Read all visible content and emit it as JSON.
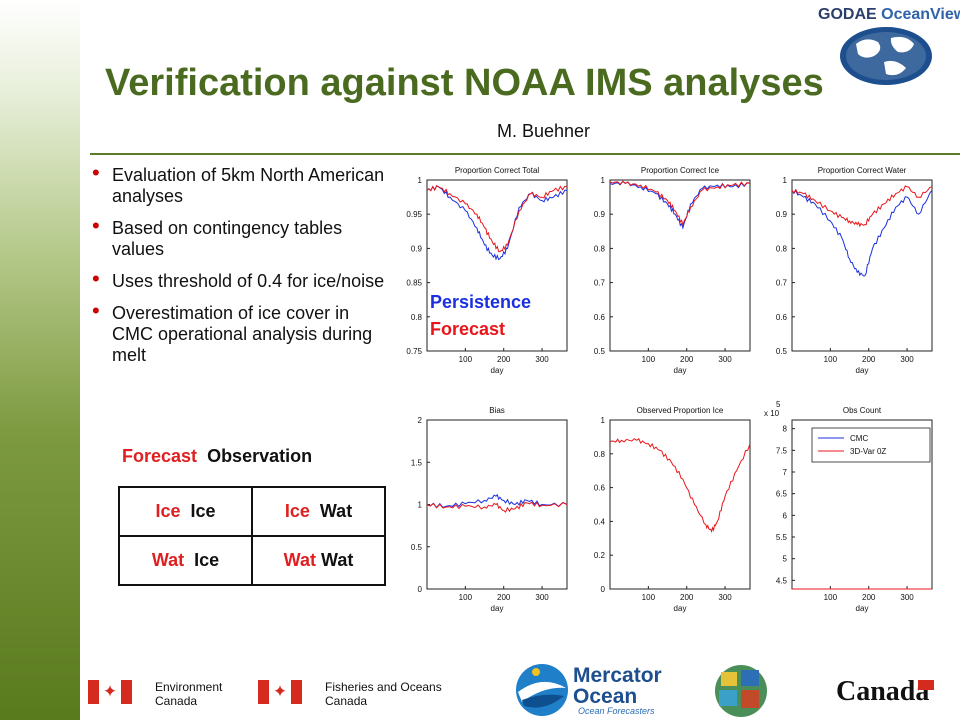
{
  "header": {
    "title": "Verification against NOAA IMS analyses",
    "author": "M. Buehner",
    "brand_strong": "GODAE",
    "brand_light": "OceanView"
  },
  "bullets": [
    {
      "text": "Evaluation of 5km North American analyses"
    },
    {
      "text": "Based on contingency tables values"
    },
    {
      "text": "Uses threshold of 0.4 for ice/noise"
    },
    {
      "text": "Overestimation of ice cover in CMC operational analysis during melt"
    }
  ],
  "contingency": {
    "header_forecast": "Forecast",
    "header_observation": "Observation",
    "rows": [
      [
        {
          "a": "Ice",
          "b": "Ice"
        },
        {
          "a": "Ice",
          "b": "Wat"
        }
      ],
      [
        {
          "a": "Wat",
          "b": "Ice"
        },
        {
          "a": "Wat",
          "b": "Wat"
        }
      ]
    ]
  },
  "plot_legend": {
    "persistence": "Persistence",
    "forecast": "Forecast"
  },
  "colors": {
    "title_green": "#4a6b1f",
    "blue_series": "#1a2fe0",
    "red_series": "#e8161b",
    "bullet_red": "#cc0000"
  },
  "chart_data": [
    {
      "type": "line",
      "title": "Proportion Correct Total",
      "xlabel": "day",
      "xlim": [
        0,
        365
      ],
      "ylim": [
        0.75,
        1
      ],
      "xticks": [
        "100",
        "200",
        "300"
      ],
      "yticks": [
        "0.75",
        "0.8",
        "0.85",
        "0.9",
        "0.95",
        "1"
      ],
      "series": [
        {
          "color": "blue",
          "x": [
            0,
            30,
            60,
            100,
            130,
            150,
            170,
            190,
            210,
            240,
            270,
            300,
            330,
            365
          ],
          "y": [
            0.985,
            0.99,
            0.975,
            0.955,
            0.93,
            0.905,
            0.89,
            0.885,
            0.9,
            0.96,
            0.98,
            0.97,
            0.975,
            0.985
          ]
        },
        {
          "color": "red",
          "x": [
            0,
            30,
            60,
            100,
            130,
            150,
            170,
            190,
            210,
            240,
            270,
            300,
            330,
            365
          ],
          "y": [
            0.985,
            0.99,
            0.98,
            0.965,
            0.95,
            0.93,
            0.91,
            0.895,
            0.905,
            0.955,
            0.98,
            0.975,
            0.985,
            0.99
          ]
        }
      ]
    },
    {
      "type": "line",
      "title": "Proportion Correct Ice",
      "xlabel": "day",
      "xlim": [
        0,
        365
      ],
      "ylim": [
        0.5,
        1
      ],
      "xticks": [
        "100",
        "200",
        "300"
      ],
      "yticks": [
        "0.5",
        "0.6",
        "0.7",
        "0.8",
        "0.9",
        "1"
      ],
      "series": [
        {
          "color": "blue",
          "x": [
            0,
            40,
            80,
            120,
            150,
            170,
            190,
            210,
            240,
            280,
            320,
            365
          ],
          "y": [
            0.99,
            0.99,
            0.98,
            0.96,
            0.93,
            0.9,
            0.86,
            0.93,
            0.975,
            0.985,
            0.98,
            0.99
          ]
        },
        {
          "color": "red",
          "x": [
            0,
            40,
            80,
            120,
            150,
            170,
            190,
            210,
            240,
            280,
            320,
            365
          ],
          "y": [
            0.995,
            0.99,
            0.985,
            0.965,
            0.94,
            0.91,
            0.87,
            0.92,
            0.97,
            0.98,
            0.985,
            0.99
          ]
        }
      ]
    },
    {
      "type": "line",
      "title": "Proportion Correct Water",
      "xlabel": "day",
      "xlim": [
        0,
        365
      ],
      "ylim": [
        0.5,
        1
      ],
      "xticks": [
        "100",
        "200",
        "300"
      ],
      "yticks": [
        "0.5",
        "0.6",
        "0.7",
        "0.8",
        "0.9",
        "1"
      ],
      "series": [
        {
          "color": "blue",
          "x": [
            0,
            30,
            60,
            100,
            130,
            150,
            170,
            190,
            210,
            240,
            270,
            300,
            330,
            365
          ],
          "y": [
            0.97,
            0.95,
            0.93,
            0.88,
            0.83,
            0.77,
            0.73,
            0.72,
            0.8,
            0.86,
            0.92,
            0.95,
            0.9,
            0.97
          ]
        },
        {
          "color": "red",
          "x": [
            0,
            30,
            60,
            100,
            130,
            150,
            170,
            190,
            210,
            240,
            270,
            300,
            330,
            365
          ],
          "y": [
            0.97,
            0.96,
            0.94,
            0.91,
            0.89,
            0.88,
            0.87,
            0.87,
            0.9,
            0.93,
            0.96,
            0.98,
            0.95,
            0.98
          ]
        }
      ]
    },
    {
      "type": "line",
      "title": "Bias",
      "xlabel": "day",
      "xlim": [
        0,
        365
      ],
      "ylim": [
        0,
        2
      ],
      "xticks": [
        "100",
        "200",
        "300"
      ],
      "yticks": [
        "0",
        "0.5",
        "1",
        "1.5",
        "2"
      ],
      "series": [
        {
          "color": "blue",
          "x": [
            0,
            50,
            100,
            150,
            180,
            200,
            230,
            260,
            300,
            365
          ],
          "y": [
            1.0,
            0.98,
            1.01,
            1.05,
            1.1,
            1.05,
            1.0,
            1.05,
            1.0,
            1.0
          ]
        },
        {
          "color": "red",
          "x": [
            0,
            50,
            100,
            150,
            180,
            200,
            230,
            260,
            300,
            365
          ],
          "y": [
            1.0,
            0.97,
            0.98,
            0.97,
            1.0,
            0.93,
            0.95,
            1.02,
            0.99,
            1.0
          ]
        }
      ]
    },
    {
      "type": "line",
      "title": "Observed Proportion Ice",
      "xlabel": "day",
      "xlim": [
        0,
        365
      ],
      "ylim": [
        0,
        1
      ],
      "xticks": [
        "100",
        "200",
        "300"
      ],
      "yticks": [
        "0",
        "0.2",
        "0.4",
        "0.6",
        "0.8",
        "1"
      ],
      "series": [
        {
          "color": "red",
          "x": [
            0,
            30,
            70,
            100,
            130,
            160,
            190,
            220,
            250,
            265,
            280,
            300,
            330,
            365
          ],
          "y": [
            0.87,
            0.88,
            0.88,
            0.86,
            0.82,
            0.75,
            0.65,
            0.5,
            0.38,
            0.34,
            0.4,
            0.55,
            0.7,
            0.86
          ]
        }
      ]
    },
    {
      "type": "line",
      "title": "Obs Count",
      "xlabel": "day",
      "xlim": [
        0,
        365
      ],
      "ylim": [
        4.3,
        8.2
      ],
      "xticks": [
        "100",
        "200",
        "300"
      ],
      "yticks": [
        "4.5",
        "5",
        "5.5",
        "6",
        "6.5",
        "7",
        "7.5",
        "8"
      ],
      "multiplier": "x 10",
      "multiplier_exp": "5",
      "legend": [
        "CMC",
        "3D-Var 0Z"
      ],
      "series": [
        {
          "name": "CMC",
          "color": "blue",
          "x": [
            0,
            365
          ],
          "y": [
            4.3,
            4.3
          ]
        },
        {
          "name": "3D-Var 0Z",
          "color": "red",
          "x": [
            0,
            365
          ],
          "y": [
            4.3,
            4.3
          ]
        }
      ]
    }
  ],
  "footer": {
    "env_line1": "Environment",
    "env_line2": "Canada",
    "dfo_line1": "Fisheries and Oceans",
    "dfo_line2": "Canada",
    "mercator_line1": "Mercator",
    "mercator_line2": "Ocean",
    "mercator_sub": "Ocean Forecasters",
    "canada": "Canada"
  }
}
